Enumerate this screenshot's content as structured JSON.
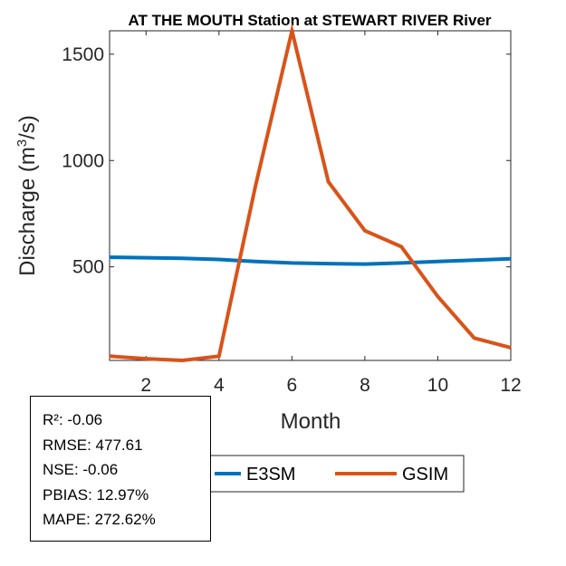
{
  "chart_data": {
    "type": "line",
    "title": "AT THE MOUTH  Station at  STEWART RIVER  River",
    "xlabel": "Month",
    "ylabel_main": "Discharge (m",
    "ylabel_sup": "3",
    "ylabel_end": "/s)",
    "xlim": [
      1,
      12
    ],
    "ylim": [
      60,
      1610
    ],
    "x_ticks": [
      2,
      4,
      6,
      8,
      10,
      12
    ],
    "y_ticks": [
      500,
      1000,
      1500
    ],
    "x": [
      1,
      2,
      3,
      4,
      5,
      6,
      7,
      8,
      9,
      10,
      11,
      12
    ],
    "series": [
      {
        "name": "E3SM",
        "color": "#0072BD",
        "values": [
          545,
          543,
          540,
          535,
          525,
          518,
          515,
          513,
          518,
          525,
          532,
          538
        ]
      },
      {
        "name": "GSIM",
        "color": "#D95319",
        "values": [
          80,
          68,
          60,
          80,
          880,
          1610,
          900,
          670,
          595,
          360,
          165,
          120
        ]
      }
    ],
    "legend": "bottom-center",
    "grid": false
  },
  "stats": {
    "r2": "R²: -0.06",
    "rmse": "RMSE: 477.61",
    "nse": "NSE: -0.06",
    "pbias": "PBIAS: 12.97%",
    "mape": "MAPE: 272.62%"
  }
}
